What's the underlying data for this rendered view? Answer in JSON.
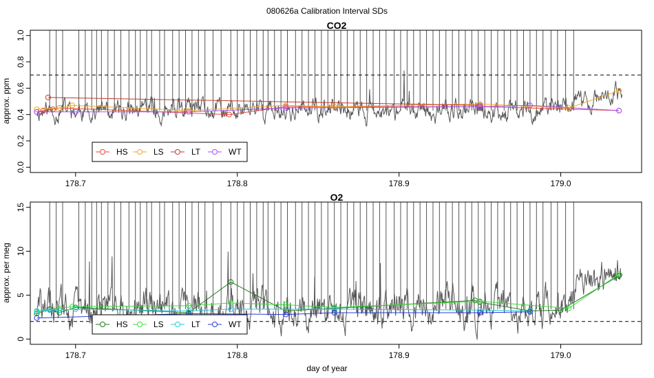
{
  "figure_title": "080626a   Calibration Interval SDs",
  "xlabel": "day of year",
  "chart_data": [
    {
      "type": "line",
      "title": "CO2",
      "ylabel": "approx. ppm",
      "xlim": [
        178.672,
        179.05
      ],
      "ylim": [
        -0.04,
        1.04
      ],
      "xticks": [
        178.7,
        178.8,
        178.9,
        179.0
      ],
      "yticks": [
        0.0,
        0.2,
        0.4,
        0.6,
        0.8,
        1.0
      ],
      "ytick_labels": [
        "0.0",
        "0.2",
        "0.4",
        "0.6",
        "0.8",
        "1.0"
      ],
      "threshold": 0.7,
      "noise": {
        "base": 0.43,
        "amplitude": 0.1,
        "seed": 11,
        "bump_start": 178.99,
        "bump_height": 0.12
      },
      "spikes": [
        178.684,
        178.688,
        178.692,
        178.702,
        178.706,
        178.71,
        178.713,
        178.716,
        178.72,
        178.724,
        178.728,
        178.733,
        178.737,
        178.74,
        178.744,
        178.747,
        178.752,
        178.755,
        178.76,
        178.764,
        178.768,
        178.772,
        178.776,
        178.78,
        178.785,
        178.79,
        178.796,
        178.8,
        178.804,
        178.808,
        178.812,
        178.816,
        178.819,
        178.823,
        178.827,
        178.831,
        178.836,
        178.84,
        178.844,
        178.848,
        178.852,
        178.856,
        178.86,
        178.864,
        178.868,
        178.872,
        178.876,
        178.88,
        178.884,
        178.888,
        178.892,
        178.897,
        178.901,
        178.905,
        178.909,
        178.913,
        178.917,
        178.921,
        178.925,
        178.929,
        178.933,
        178.937,
        178.941,
        178.945,
        178.949,
        178.953,
        178.957,
        178.961,
        178.965,
        178.969,
        178.973,
        178.977,
        178.981,
        178.985,
        178.989,
        178.994,
        178.998,
        179.003,
        179.008
      ],
      "legend": {
        "position": "bottom-left"
      },
      "series": [
        {
          "name": "HS",
          "color": "#e8463a",
          "x": [
            178.676,
            178.68,
            178.686,
            178.69,
            178.795,
            178.83,
            178.86,
            178.95,
            179.036
          ],
          "y": [
            0.42,
            0.43,
            0.44,
            0.45,
            0.4,
            0.46,
            0.46,
            0.46,
            0.43
          ]
        },
        {
          "name": "LS",
          "color": "#f5a623",
          "x": [
            178.676,
            178.69,
            178.698,
            178.77,
            178.83,
            178.86,
            178.95,
            179.005,
            179.036
          ],
          "y": [
            0.44,
            0.45,
            0.47,
            0.43,
            0.47,
            0.46,
            0.48,
            0.45,
            0.58
          ]
        },
        {
          "name": "LT",
          "color": "#c0392b",
          "x": [
            178.683,
            178.95
          ],
          "y": [
            0.53,
            0.47
          ]
        },
        {
          "name": "WT",
          "color": "#a64dff",
          "x": [
            178.676,
            178.7,
            178.77,
            178.83,
            178.95,
            178.981,
            179.036
          ],
          "y": [
            0.42,
            0.42,
            0.42,
            0.45,
            0.46,
            0.47,
            0.43
          ]
        }
      ]
    },
    {
      "type": "line",
      "title": "O2",
      "ylabel": "approx. per meg",
      "xlim": [
        178.672,
        179.05
      ],
      "ylim": [
        -0.6,
        15.6
      ],
      "xticks": [
        178.7,
        178.8,
        178.9,
        179.0
      ],
      "yticks": [
        0,
        5,
        10,
        15
      ],
      "ytick_labels": [
        "0",
        "5",
        "10",
        "15"
      ],
      "threshold": 2,
      "noise": {
        "base": 3.4,
        "amplitude": 2.6,
        "seed": 29,
        "bump_start": 178.99,
        "bump_height": 4.5
      },
      "spikes": [
        178.684,
        178.688,
        178.692,
        178.702,
        178.706,
        178.71,
        178.713,
        178.716,
        178.72,
        178.724,
        178.728,
        178.733,
        178.737,
        178.74,
        178.744,
        178.747,
        178.752,
        178.755,
        178.76,
        178.764,
        178.768,
        178.772,
        178.776,
        178.78,
        178.785,
        178.79,
        178.796,
        178.8,
        178.804,
        178.808,
        178.812,
        178.816,
        178.819,
        178.823,
        178.827,
        178.831,
        178.836,
        178.84,
        178.844,
        178.848,
        178.852,
        178.856,
        178.86,
        178.864,
        178.868,
        178.872,
        178.876,
        178.88,
        178.884,
        178.888,
        178.892,
        178.897,
        178.901,
        178.905,
        178.909,
        178.913,
        178.917,
        178.921,
        178.925,
        178.929,
        178.933,
        178.937,
        178.941,
        178.945,
        178.949,
        178.953,
        178.957,
        178.961,
        178.965,
        178.969,
        178.973,
        178.977,
        178.981,
        178.985,
        178.989,
        178.994,
        178.998,
        179.003,
        179.008
      ],
      "legend": {
        "position": "bottom-left"
      },
      "series": [
        {
          "name": "HS",
          "color": "#1f7a1f",
          "x": [
            178.676,
            178.684,
            178.69,
            178.7,
            178.77,
            178.796,
            178.83,
            178.86,
            178.947,
            178.95,
            178.981,
            179.0,
            179.036
          ],
          "y": [
            2.9,
            3.4,
            3.0,
            3.6,
            3.0,
            6.5,
            3.2,
            3.5,
            4.4,
            4.2,
            3.2,
            3.3,
            7.2
          ]
        },
        {
          "name": "LS",
          "color": "#3ddc3d",
          "x": [
            178.676,
            178.69,
            178.698,
            178.77,
            178.796,
            178.83,
            178.86,
            178.95,
            179.005,
            179.036
          ],
          "y": [
            3.1,
            3.5,
            3.7,
            3.8,
            4.1,
            3.9,
            3.6,
            4.3,
            3.5,
            7.4
          ]
        },
        {
          "name": "LT",
          "color": "#26c6da",
          "x": [
            178.676,
            178.684,
            178.69,
            178.7,
            178.77,
            178.796,
            178.86,
            178.95,
            178.981
          ],
          "y": [
            3.2,
            3.3,
            3.3,
            3.4,
            3.2,
            3.4,
            3.4,
            3.3,
            3.2
          ]
        },
        {
          "name": "WT",
          "color": "#2b3ad6",
          "x": [
            178.676,
            178.77,
            178.83,
            178.86,
            178.95,
            178.981
          ],
          "y": [
            2.4,
            2.9,
            2.8,
            3.0,
            3.0,
            3.1
          ]
        }
      ]
    }
  ]
}
